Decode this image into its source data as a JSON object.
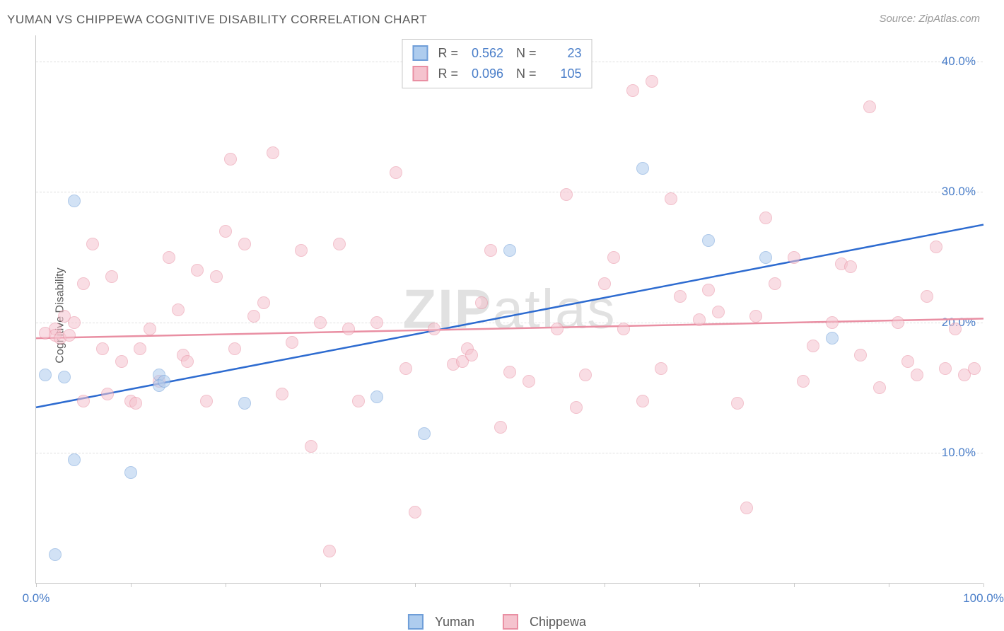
{
  "title": "YUMAN VS CHIPPEWA COGNITIVE DISABILITY CORRELATION CHART",
  "source": "Source: ZipAtlas.com",
  "y_axis_label": "Cognitive Disability",
  "watermark": {
    "bold": "ZIP",
    "light": "atlas"
  },
  "chart": {
    "type": "scatter",
    "xlim": [
      0,
      100
    ],
    "ylim": [
      0,
      42
    ],
    "x_ticks": [
      0,
      10,
      20,
      30,
      40,
      50,
      60,
      70,
      80,
      90,
      100
    ],
    "x_tick_labels": {
      "0": "0.0%",
      "100": "100.0%"
    },
    "y_gridlines": [
      10,
      20,
      30,
      40
    ],
    "y_tick_labels": {
      "10": "10.0%",
      "20": "20.0%",
      "30": "30.0%",
      "40": "40.0%"
    },
    "background_color": "#ffffff",
    "grid_color": "#e0e0e0",
    "axis_color": "#c8c8c8",
    "label_color": "#4a7ec9",
    "title_color": "#5a5a5a",
    "point_radius": 9,
    "point_opacity": 0.55,
    "trend_line_width": 2.5
  },
  "series": [
    {
      "name": "Yuman",
      "fill": "#aeccee",
      "stroke": "#6f9ed8",
      "trend_color": "#2d6bd0",
      "trend": {
        "x1": 0,
        "y1": 13.5,
        "x2": 100,
        "y2": 27.5
      },
      "R": "0.562",
      "N": "23",
      "points": [
        [
          4,
          29.3
        ],
        [
          2,
          2.2
        ],
        [
          1,
          16.0
        ],
        [
          3,
          15.8
        ],
        [
          4,
          9.5
        ],
        [
          10,
          8.5
        ],
        [
          13,
          16.0
        ],
        [
          13,
          15.2
        ],
        [
          13.5,
          15.5
        ],
        [
          22,
          13.8
        ],
        [
          36,
          14.3
        ],
        [
          41,
          11.5
        ],
        [
          50,
          25.5
        ],
        [
          64,
          31.8
        ],
        [
          71,
          26.3
        ],
        [
          77,
          25.0
        ],
        [
          84,
          18.8
        ]
      ]
    },
    {
      "name": "Chippewa",
      "fill": "#f5c3ce",
      "stroke": "#e98fa3",
      "trend_color": "#e98fa3",
      "trend": {
        "x1": 0,
        "y1": 18.8,
        "x2": 100,
        "y2": 20.3
      },
      "R": "0.096",
      "N": "105",
      "points": [
        [
          1,
          19.2
        ],
        [
          2,
          19.5
        ],
        [
          2,
          19.0
        ],
        [
          2.5,
          18.8
        ],
        [
          3,
          20.5
        ],
        [
          3.5,
          19.0
        ],
        [
          4,
          20.0
        ],
        [
          5,
          14.0
        ],
        [
          5,
          23.0
        ],
        [
          6,
          26.0
        ],
        [
          7,
          18.0
        ],
        [
          7.5,
          14.5
        ],
        [
          8,
          23.5
        ],
        [
          9,
          17.0
        ],
        [
          10,
          14.0
        ],
        [
          10.5,
          13.8
        ],
        [
          11,
          18.0
        ],
        [
          12,
          19.5
        ],
        [
          13,
          15.5
        ],
        [
          14,
          25.0
        ],
        [
          15,
          21.0
        ],
        [
          15.5,
          17.5
        ],
        [
          16,
          17.0
        ],
        [
          17,
          24.0
        ],
        [
          18,
          14.0
        ],
        [
          19,
          23.5
        ],
        [
          20,
          27.0
        ],
        [
          20.5,
          32.5
        ],
        [
          21,
          18.0
        ],
        [
          22,
          26.0
        ],
        [
          23,
          20.5
        ],
        [
          24,
          21.5
        ],
        [
          25,
          33.0
        ],
        [
          26,
          14.5
        ],
        [
          27,
          18.5
        ],
        [
          28,
          25.5
        ],
        [
          29,
          10.5
        ],
        [
          30,
          20.0
        ],
        [
          31,
          2.5
        ],
        [
          32,
          26.0
        ],
        [
          33,
          19.5
        ],
        [
          34,
          14.0
        ],
        [
          36,
          20.0
        ],
        [
          38,
          31.5
        ],
        [
          39,
          16.5
        ],
        [
          40,
          5.5
        ],
        [
          42,
          19.5
        ],
        [
          44,
          16.8
        ],
        [
          45,
          17.0
        ],
        [
          45.5,
          18.0
        ],
        [
          46,
          17.5
        ],
        [
          47,
          21.5
        ],
        [
          48,
          25.5
        ],
        [
          49,
          12.0
        ],
        [
          50,
          16.2
        ],
        [
          52,
          15.5
        ],
        [
          55,
          19.5
        ],
        [
          56,
          29.8
        ],
        [
          57,
          13.5
        ],
        [
          58,
          16.0
        ],
        [
          60,
          23.0
        ],
        [
          61,
          25.0
        ],
        [
          62,
          19.5
        ],
        [
          63,
          37.8
        ],
        [
          64,
          14.0
        ],
        [
          65,
          38.5
        ],
        [
          66,
          16.5
        ],
        [
          67,
          29.5
        ],
        [
          68,
          22.0
        ],
        [
          70,
          20.2
        ],
        [
          71,
          22.5
        ],
        [
          72,
          20.8
        ],
        [
          74,
          13.8
        ],
        [
          75,
          5.8
        ],
        [
          76,
          20.5
        ],
        [
          77,
          28.0
        ],
        [
          78,
          23.0
        ],
        [
          80,
          25.0
        ],
        [
          81,
          15.5
        ],
        [
          82,
          18.2
        ],
        [
          84,
          20.0
        ],
        [
          85,
          24.5
        ],
        [
          86,
          24.3
        ],
        [
          87,
          17.5
        ],
        [
          88,
          36.5
        ],
        [
          89,
          15.0
        ],
        [
          91,
          20.0
        ],
        [
          92,
          17.0
        ],
        [
          93,
          16.0
        ],
        [
          94,
          22.0
        ],
        [
          95,
          25.8
        ],
        [
          96,
          16.5
        ],
        [
          97,
          19.5
        ],
        [
          98,
          16.0
        ],
        [
          99,
          16.5
        ]
      ]
    }
  ],
  "legend_bottom": [
    {
      "label": "Yuman",
      "fill": "#aeccee",
      "stroke": "#6f9ed8"
    },
    {
      "label": "Chippewa",
      "fill": "#f5c3ce",
      "stroke": "#e98fa3"
    }
  ]
}
